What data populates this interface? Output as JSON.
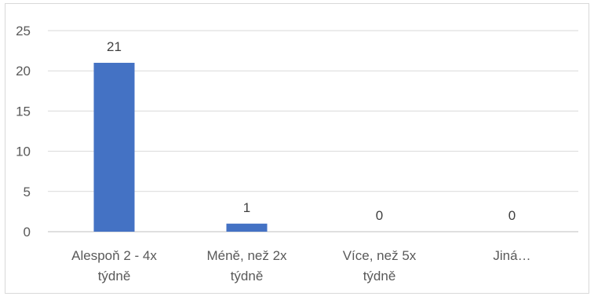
{
  "chart_data": {
    "type": "bar",
    "categories": [
      [
        "Alespoň 2 - 4x",
        "týdně"
      ],
      [
        "Méně, než 2x",
        "týdně"
      ],
      [
        "Více, než 5x",
        "týdně"
      ],
      [
        "Jiná…"
      ]
    ],
    "values": [
      21,
      1,
      0,
      0
    ],
    "data_labels": [
      "21",
      "1",
      "0",
      "0"
    ],
    "title": "",
    "xlabel": "",
    "ylabel": "",
    "ylim": [
      0,
      25
    ],
    "yticks": [
      0,
      5,
      10,
      15,
      20,
      25
    ],
    "grid": true,
    "legend": "none",
    "bar_color": "#4472C4"
  }
}
